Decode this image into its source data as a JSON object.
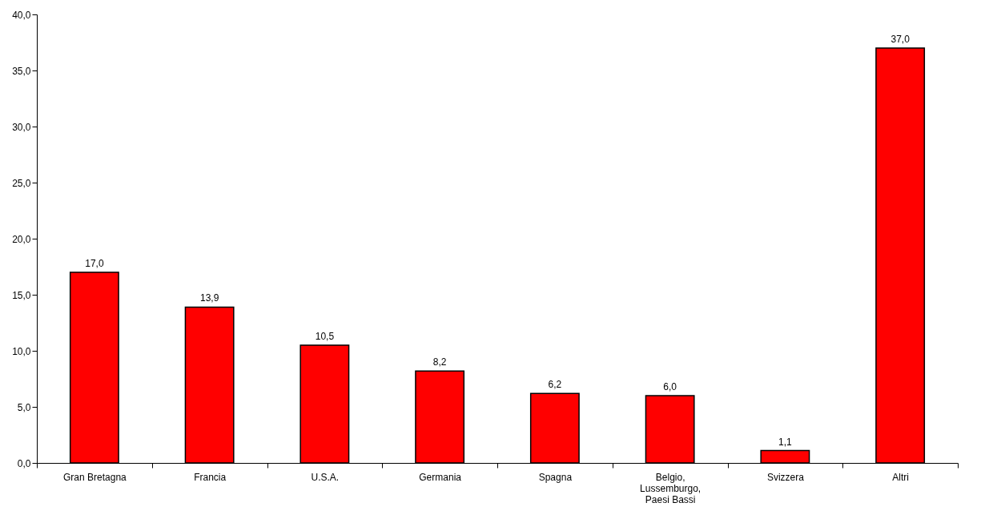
{
  "chart_data": {
    "type": "bar",
    "categories": [
      "Gran Bretagna",
      "Francia",
      "U.S.A.",
      "Germania",
      "Spagna",
      "Belgio, Lussemburgo, Paesi Bassi",
      "Svizzera",
      "Altri"
    ],
    "values": [
      17.0,
      13.9,
      10.5,
      8.2,
      6.2,
      6.0,
      1.1,
      37.0
    ],
    "value_labels": [
      "17,0",
      "13,9",
      "10,5",
      "8,2",
      "6,2",
      "6,0",
      "1,1",
      "37,0"
    ],
    "color": "#ff0000",
    "ylim": [
      0,
      40
    ],
    "yticks": [
      {
        "value": 0,
        "label": "0,0"
      },
      {
        "value": 5,
        "label": "5,0"
      },
      {
        "value": 10,
        "label": "10,0"
      },
      {
        "value": 15,
        "label": "15,0"
      },
      {
        "value": 20,
        "label": "20,0"
      },
      {
        "value": 25,
        "label": "25,0"
      },
      {
        "value": 30,
        "label": "30,0"
      },
      {
        "value": 35,
        "label": "35,0"
      },
      {
        "value": 40,
        "label": "40,0"
      }
    ],
    "grid": false
  }
}
